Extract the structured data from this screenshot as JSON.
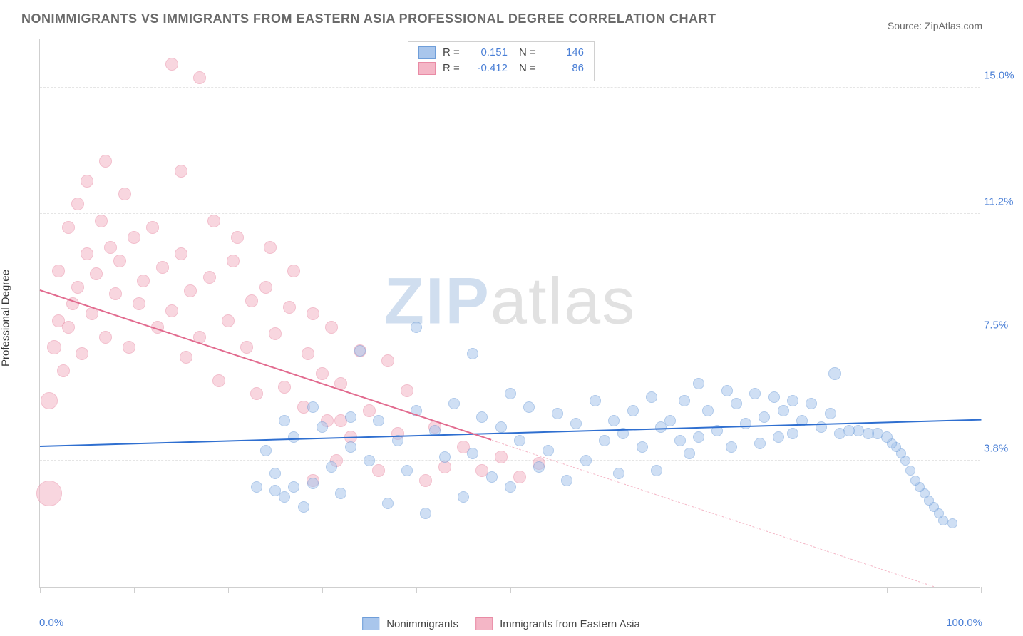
{
  "title": "NONIMMIGRANTS VS IMMIGRANTS FROM EASTERN ASIA PROFESSIONAL DEGREE CORRELATION CHART",
  "source": "Source: ZipAtlas.com",
  "watermark": {
    "part1": "ZIP",
    "part2": "atlas"
  },
  "yaxis_title": "Professional Degree",
  "xaxis": {
    "min_label": "0.0%",
    "max_label": "100.0%",
    "min": 0,
    "max": 100,
    "tick_count": 11
  },
  "yaxis": {
    "min": 0,
    "max": 16.5,
    "ticks": [
      {
        "v": 3.8,
        "label": "3.8%"
      },
      {
        "v": 7.5,
        "label": "7.5%"
      },
      {
        "v": 11.2,
        "label": "11.2%"
      },
      {
        "v": 15.0,
        "label": "15.0%"
      }
    ]
  },
  "series": [
    {
      "key": "blue",
      "name": "Nonimmigrants",
      "fill": "#a9c6ec",
      "stroke": "#6f9ed9",
      "fill_opacity": 0.55,
      "R": "0.151",
      "N": "146",
      "trend": {
        "x1": 0,
        "y1": 4.2,
        "x2": 100,
        "y2": 5.0,
        "color": "#2f6fd0",
        "width": 2.5,
        "dash": false
      },
      "points": [
        {
          "x": 97,
          "y": 1.9,
          "r": 7
        },
        {
          "x": 96,
          "y": 2.0,
          "r": 7
        },
        {
          "x": 95.5,
          "y": 2.2,
          "r": 7
        },
        {
          "x": 95,
          "y": 2.4,
          "r": 7
        },
        {
          "x": 94.5,
          "y": 2.6,
          "r": 7
        },
        {
          "x": 94,
          "y": 2.8,
          "r": 7
        },
        {
          "x": 93.5,
          "y": 3.0,
          "r": 7
        },
        {
          "x": 93,
          "y": 3.2,
          "r": 7
        },
        {
          "x": 92.5,
          "y": 3.5,
          "r": 7
        },
        {
          "x": 92,
          "y": 3.8,
          "r": 7
        },
        {
          "x": 91.5,
          "y": 4.0,
          "r": 7
        },
        {
          "x": 91,
          "y": 4.2,
          "r": 7
        },
        {
          "x": 90.5,
          "y": 4.3,
          "r": 7
        },
        {
          "x": 90,
          "y": 4.5,
          "r": 8
        },
        {
          "x": 89,
          "y": 4.6,
          "r": 8
        },
        {
          "x": 88,
          "y": 4.6,
          "r": 8
        },
        {
          "x": 87,
          "y": 4.7,
          "r": 8
        },
        {
          "x": 86,
          "y": 4.7,
          "r": 8
        },
        {
          "x": 85,
          "y": 4.6,
          "r": 8
        },
        {
          "x": 84.5,
          "y": 6.4,
          "r": 9
        },
        {
          "x": 84,
          "y": 5.2,
          "r": 8
        },
        {
          "x": 83,
          "y": 4.8,
          "r": 8
        },
        {
          "x": 82,
          "y": 5.5,
          "r": 8
        },
        {
          "x": 81,
          "y": 5.0,
          "r": 8
        },
        {
          "x": 80,
          "y": 4.6,
          "r": 8
        },
        {
          "x": 80,
          "y": 5.6,
          "r": 8
        },
        {
          "x": 79,
          "y": 5.3,
          "r": 8
        },
        {
          "x": 78.5,
          "y": 4.5,
          "r": 8
        },
        {
          "x": 78,
          "y": 5.7,
          "r": 8
        },
        {
          "x": 77,
          "y": 5.1,
          "r": 8
        },
        {
          "x": 76.5,
          "y": 4.3,
          "r": 8
        },
        {
          "x": 76,
          "y": 5.8,
          "r": 8
        },
        {
          "x": 75,
          "y": 4.9,
          "r": 8
        },
        {
          "x": 74,
          "y": 5.5,
          "r": 8
        },
        {
          "x": 73.5,
          "y": 4.2,
          "r": 8
        },
        {
          "x": 73,
          "y": 5.9,
          "r": 8
        },
        {
          "x": 72,
          "y": 4.7,
          "r": 8
        },
        {
          "x": 71,
          "y": 5.3,
          "r": 8
        },
        {
          "x": 70,
          "y": 4.5,
          "r": 8
        },
        {
          "x": 70,
          "y": 6.1,
          "r": 8
        },
        {
          "x": 69,
          "y": 4.0,
          "r": 8
        },
        {
          "x": 68.5,
          "y": 5.6,
          "r": 8
        },
        {
          "x": 68,
          "y": 4.4,
          "r": 8
        },
        {
          "x": 67,
          "y": 5.0,
          "r": 8
        },
        {
          "x": 66,
          "y": 4.8,
          "r": 8
        },
        {
          "x": 65.5,
          "y": 3.5,
          "r": 8
        },
        {
          "x": 65,
          "y": 5.7,
          "r": 8
        },
        {
          "x": 64,
          "y": 4.2,
          "r": 8
        },
        {
          "x": 63,
          "y": 5.3,
          "r": 8
        },
        {
          "x": 62,
          "y": 4.6,
          "r": 8
        },
        {
          "x": 61.5,
          "y": 3.4,
          "r": 8
        },
        {
          "x": 61,
          "y": 5.0,
          "r": 8
        },
        {
          "x": 60,
          "y": 4.4,
          "r": 8
        },
        {
          "x": 59,
          "y": 5.6,
          "r": 8
        },
        {
          "x": 58,
          "y": 3.8,
          "r": 8
        },
        {
          "x": 57,
          "y": 4.9,
          "r": 8
        },
        {
          "x": 56,
          "y": 3.2,
          "r": 8
        },
        {
          "x": 55,
          "y": 5.2,
          "r": 8
        },
        {
          "x": 54,
          "y": 4.1,
          "r": 8
        },
        {
          "x": 53,
          "y": 3.6,
          "r": 8
        },
        {
          "x": 52,
          "y": 5.4,
          "r": 8
        },
        {
          "x": 51,
          "y": 4.4,
          "r": 8
        },
        {
          "x": 50,
          "y": 3.0,
          "r": 8
        },
        {
          "x": 50,
          "y": 5.8,
          "r": 8
        },
        {
          "x": 49,
          "y": 4.8,
          "r": 8
        },
        {
          "x": 48,
          "y": 3.3,
          "r": 8
        },
        {
          "x": 47,
          "y": 5.1,
          "r": 8
        },
        {
          "x": 46,
          "y": 4.0,
          "r": 8
        },
        {
          "x": 46,
          "y": 7.0,
          "r": 8
        },
        {
          "x": 45,
          "y": 2.7,
          "r": 8
        },
        {
          "x": 44,
          "y": 5.5,
          "r": 8
        },
        {
          "x": 43,
          "y": 3.9,
          "r": 8
        },
        {
          "x": 42,
          "y": 4.7,
          "r": 8
        },
        {
          "x": 41,
          "y": 2.2,
          "r": 8
        },
        {
          "x": 40,
          "y": 5.3,
          "r": 8
        },
        {
          "x": 40,
          "y": 7.8,
          "r": 8
        },
        {
          "x": 39,
          "y": 3.5,
          "r": 8
        },
        {
          "x": 38,
          "y": 4.4,
          "r": 8
        },
        {
          "x": 37,
          "y": 2.5,
          "r": 8
        },
        {
          "x": 36,
          "y": 5.0,
          "r": 8
        },
        {
          "x": 35,
          "y": 3.8,
          "r": 8
        },
        {
          "x": 34,
          "y": 7.1,
          "r": 8
        },
        {
          "x": 33,
          "y": 4.2,
          "r": 8
        },
        {
          "x": 33,
          "y": 5.1,
          "r": 8
        },
        {
          "x": 32,
          "y": 2.8,
          "r": 8
        },
        {
          "x": 31,
          "y": 3.6,
          "r": 8
        },
        {
          "x": 30,
          "y": 4.8,
          "r": 8
        },
        {
          "x": 29,
          "y": 5.4,
          "r": 8
        },
        {
          "x": 29,
          "y": 3.1,
          "r": 8
        },
        {
          "x": 28,
          "y": 2.4,
          "r": 8
        },
        {
          "x": 27,
          "y": 4.5,
          "r": 8
        },
        {
          "x": 27,
          "y": 3.0,
          "r": 8
        },
        {
          "x": 26,
          "y": 2.7,
          "r": 8
        },
        {
          "x": 26,
          "y": 5.0,
          "r": 8
        },
        {
          "x": 25,
          "y": 3.4,
          "r": 8
        },
        {
          "x": 25,
          "y": 2.9,
          "r": 8
        },
        {
          "x": 24,
          "y": 4.1,
          "r": 8
        },
        {
          "x": 23,
          "y": 3.0,
          "r": 8
        }
      ]
    },
    {
      "key": "pink",
      "name": "Immigrants from Eastern Asia",
      "fill": "#f4b6c6",
      "stroke": "#e98ba5",
      "fill_opacity": 0.55,
      "R": "-0.412",
      "N": "86",
      "trend": {
        "x1": 0,
        "y1": 8.9,
        "x2": 48,
        "y2": 4.4,
        "color": "#e26b8f",
        "width": 2.5,
        "dash": false
      },
      "trend_ext": {
        "x1": 48,
        "y1": 4.4,
        "x2": 95,
        "y2": 0.0,
        "color": "#f4b6c6",
        "width": 1,
        "dash": true
      },
      "points": [
        {
          "x": 1,
          "y": 2.8,
          "r": 18
        },
        {
          "x": 1,
          "y": 5.6,
          "r": 12
        },
        {
          "x": 1.5,
          "y": 7.2,
          "r": 10
        },
        {
          "x": 2,
          "y": 8.0,
          "r": 9
        },
        {
          "x": 2,
          "y": 9.5,
          "r": 9
        },
        {
          "x": 2.5,
          "y": 6.5,
          "r": 9
        },
        {
          "x": 3,
          "y": 10.8,
          "r": 9
        },
        {
          "x": 3,
          "y": 7.8,
          "r": 9
        },
        {
          "x": 3.5,
          "y": 8.5,
          "r": 9
        },
        {
          "x": 4,
          "y": 11.5,
          "r": 9
        },
        {
          "x": 4,
          "y": 9.0,
          "r": 9
        },
        {
          "x": 4.5,
          "y": 7.0,
          "r": 9
        },
        {
          "x": 5,
          "y": 12.2,
          "r": 9
        },
        {
          "x": 5,
          "y": 10.0,
          "r": 9
        },
        {
          "x": 5.5,
          "y": 8.2,
          "r": 9
        },
        {
          "x": 6,
          "y": 9.4,
          "r": 9
        },
        {
          "x": 6.5,
          "y": 11.0,
          "r": 9
        },
        {
          "x": 7,
          "y": 12.8,
          "r": 9
        },
        {
          "x": 7,
          "y": 7.5,
          "r": 9
        },
        {
          "x": 7.5,
          "y": 10.2,
          "r": 9
        },
        {
          "x": 8,
          "y": 8.8,
          "r": 9
        },
        {
          "x": 8.5,
          "y": 9.8,
          "r": 9
        },
        {
          "x": 9,
          "y": 11.8,
          "r": 9
        },
        {
          "x": 9.5,
          "y": 7.2,
          "r": 9
        },
        {
          "x": 10,
          "y": 10.5,
          "r": 9
        },
        {
          "x": 10.5,
          "y": 8.5,
          "r": 9
        },
        {
          "x": 11,
          "y": 9.2,
          "r": 9
        },
        {
          "x": 12,
          "y": 10.8,
          "r": 9
        },
        {
          "x": 12.5,
          "y": 7.8,
          "r": 9
        },
        {
          "x": 13,
          "y": 9.6,
          "r": 9
        },
        {
          "x": 14,
          "y": 8.3,
          "r": 9
        },
        {
          "x": 14,
          "y": 15.7,
          "r": 9
        },
        {
          "x": 15,
          "y": 10.0,
          "r": 9
        },
        {
          "x": 15.5,
          "y": 6.9,
          "r": 9
        },
        {
          "x": 16,
          "y": 8.9,
          "r": 9
        },
        {
          "x": 15,
          "y": 12.5,
          "r": 9
        },
        {
          "x": 17,
          "y": 7.5,
          "r": 9
        },
        {
          "x": 17,
          "y": 15.3,
          "r": 9
        },
        {
          "x": 18,
          "y": 9.3,
          "r": 9
        },
        {
          "x": 18.5,
          "y": 11.0,
          "r": 9
        },
        {
          "x": 19,
          "y": 6.2,
          "r": 9
        },
        {
          "x": 20,
          "y": 8.0,
          "r": 9
        },
        {
          "x": 20.5,
          "y": 9.8,
          "r": 9
        },
        {
          "x": 21,
          "y": 10.5,
          "r": 9
        },
        {
          "x": 22,
          "y": 7.2,
          "r": 9
        },
        {
          "x": 22.5,
          "y": 8.6,
          "r": 9
        },
        {
          "x": 23,
          "y": 5.8,
          "r": 9
        },
        {
          "x": 24,
          "y": 9.0,
          "r": 9
        },
        {
          "x": 24.5,
          "y": 10.2,
          "r": 9
        },
        {
          "x": 25,
          "y": 7.6,
          "r": 9
        },
        {
          "x": 26,
          "y": 6.0,
          "r": 9
        },
        {
          "x": 26.5,
          "y": 8.4,
          "r": 9
        },
        {
          "x": 27,
          "y": 9.5,
          "r": 9
        },
        {
          "x": 28,
          "y": 5.4,
          "r": 9
        },
        {
          "x": 28.5,
          "y": 7.0,
          "r": 9
        },
        {
          "x": 29,
          "y": 8.2,
          "r": 9
        },
        {
          "x": 29,
          "y": 3.2,
          "r": 9
        },
        {
          "x": 30,
          "y": 6.4,
          "r": 9
        },
        {
          "x": 30.5,
          "y": 5.0,
          "r": 9
        },
        {
          "x": 31,
          "y": 7.8,
          "r": 9
        },
        {
          "x": 31.5,
          "y": 3.8,
          "r": 9
        },
        {
          "x": 32,
          "y": 6.1,
          "r": 9
        },
        {
          "x": 32,
          "y": 5.0,
          "r": 9
        },
        {
          "x": 33,
          "y": 4.5,
          "r": 9
        },
        {
          "x": 34,
          "y": 7.1,
          "r": 9
        },
        {
          "x": 35,
          "y": 5.3,
          "r": 9
        },
        {
          "x": 36,
          "y": 3.5,
          "r": 9
        },
        {
          "x": 37,
          "y": 6.8,
          "r": 9
        },
        {
          "x": 38,
          "y": 4.6,
          "r": 9
        },
        {
          "x": 39,
          "y": 5.9,
          "r": 9
        },
        {
          "x": 41,
          "y": 3.2,
          "r": 9
        },
        {
          "x": 42,
          "y": 4.8,
          "r": 9
        },
        {
          "x": 43,
          "y": 3.6,
          "r": 9
        },
        {
          "x": 45,
          "y": 4.2,
          "r": 9
        },
        {
          "x": 47,
          "y": 3.5,
          "r": 9
        },
        {
          "x": 49,
          "y": 3.9,
          "r": 9
        },
        {
          "x": 51,
          "y": 3.3,
          "r": 9
        },
        {
          "x": 53,
          "y": 3.7,
          "r": 9
        }
      ]
    }
  ],
  "legend_bottom": [
    {
      "label": "Nonimmigrants",
      "fill": "#a9c6ec",
      "stroke": "#6f9ed9"
    },
    {
      "label": "Immigrants from Eastern Asia",
      "fill": "#f4b6c6",
      "stroke": "#e98ba5"
    }
  ]
}
